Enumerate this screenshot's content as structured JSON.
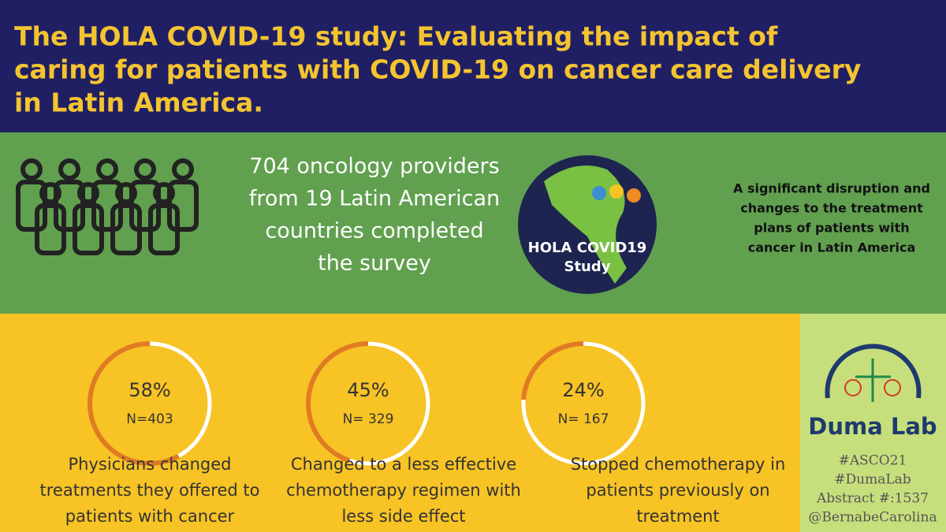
{
  "title_lines": [
    "The HOLA COVID-19 study: Evaluating the impact of",
    "caring for patients with COVID-19 on cancer care delivery",
    "in Latin America."
  ],
  "summary_lines": [
    "704 oncology providers",
    "from 19 Latin American",
    "countries completed",
    "the survey"
  ],
  "logo_lines": [
    "HOLA COVID19",
    "Study"
  ],
  "finding_lines": [
    "A significant disruption and",
    "changes to the treatment",
    "plans of patients with",
    "cancer in Latin America"
  ],
  "stats": [
    {
      "value": 58,
      "value_label": "58%",
      "n_label": "N=403",
      "caption_lines": [
        "Physicians changed",
        "treatments they offered to",
        "patients with cancer"
      ]
    },
    {
      "value": 45,
      "value_label": "45%",
      "n_label": "N= 329",
      "caption_lines": [
        "Changed to a less effective",
        "chemotherapy regimen with",
        "less side effect"
      ]
    },
    {
      "value": 24,
      "value_label": "24%",
      "n_label": "N= 167",
      "caption_lines": [
        "Stopped chemotherapy in",
        "patients previously on",
        "treatment"
      ]
    }
  ],
  "lab_name": "Duma Lab",
  "tags": [
    "#ASCO21",
    "#DumaLab",
    "Abstract #:1537",
    "@BernabeCarolina"
  ]
}
